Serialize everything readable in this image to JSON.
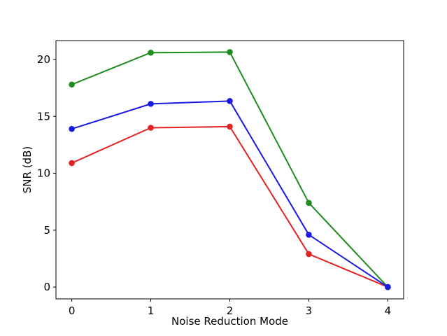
{
  "figure": {
    "background": "#ffffff",
    "plot_background": "#ffffff",
    "spine_color": "#000000",
    "tick_color": "#000000"
  },
  "chart_data": {
    "type": "line",
    "title": "",
    "xlabel": "Noise Reduction Mode",
    "ylabel": "SNR (dB)",
    "x": [
      0,
      1,
      2,
      3,
      4
    ],
    "xticks": [
      "0",
      "1",
      "2",
      "3",
      "4"
    ],
    "yticks": [
      "0",
      "5",
      "10",
      "15",
      "20"
    ],
    "ytick_values": [
      0,
      5,
      10,
      15,
      20
    ],
    "xtick_values": [
      0,
      1,
      2,
      3,
      4
    ],
    "xlim": [
      -0.2,
      4.2
    ],
    "ylim": [
      -1.04,
      21.66
    ],
    "grid": false,
    "legend": "none",
    "marker": "circle",
    "series": [
      {
        "name": "red-series",
        "color": "#e32222",
        "values": [
          10.9,
          14.0,
          14.1,
          2.9,
          0.0
        ]
      },
      {
        "name": "green-series",
        "color": "#1f8b1f",
        "values": [
          17.8,
          20.6,
          20.65,
          7.4,
          0.0
        ]
      },
      {
        "name": "blue-series",
        "color": "#1a1ae0",
        "values": [
          13.9,
          16.1,
          16.35,
          4.6,
          0.0
        ]
      }
    ]
  }
}
